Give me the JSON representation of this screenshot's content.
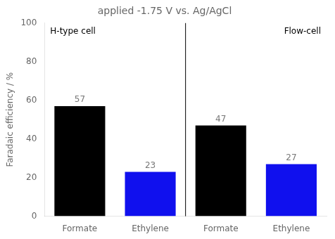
{
  "chart_data": {
    "type": "bar",
    "title": "applied -1.75 V vs. Ag/AgCl",
    "ylabel": "Faradaic efficiency / %",
    "categories": [
      "Formate",
      "Ethylene",
      "Formate",
      "Ethylene"
    ],
    "values": [
      57,
      23,
      47,
      27
    ],
    "colors": [
      "#000000",
      "#1010ee",
      "#000000",
      "#1010ee"
    ],
    "annotations": [
      "H-type cell",
      "Flow-cell"
    ],
    "ylim": [
      0,
      100
    ],
    "yticks": [
      0,
      20,
      40,
      60,
      80,
      100
    ],
    "grid": false,
    "legend": false,
    "data_labels": true
  }
}
